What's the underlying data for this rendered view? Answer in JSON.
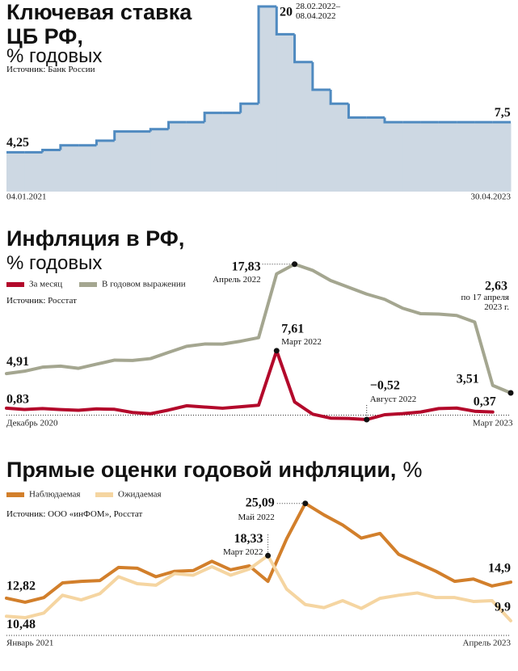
{
  "chart_data": [
    {
      "type": "step",
      "title": "Ключевая ставка ЦБ РФ,",
      "subtitle": "% годовых",
      "source": "Источник: Банк России",
      "categories": [
        "04.01.2021",
        null,
        null,
        null,
        null,
        null,
        null,
        null,
        null,
        null,
        null,
        null,
        null,
        null,
        null,
        null,
        null,
        null,
        null,
        null,
        null,
        null,
        null,
        null,
        null,
        null,
        null,
        "30.04.2023"
      ],
      "series": [
        {
          "color": "#4f8ac0",
          "fill": "#cdd8e3",
          "values": [
            4.25,
            4.25,
            4.5,
            5,
            5,
            5.5,
            6.5,
            6.5,
            6.75,
            7.5,
            7.5,
            8.5,
            8.5,
            9.5,
            20,
            17,
            14,
            11,
            9.5,
            8,
            8,
            7.5,
            7.5,
            7.5,
            7.5,
            7.5,
            7.5,
            7.5
          ],
          "value_labels": [
            "4,25",
            null,
            null,
            null,
            null,
            null,
            null,
            null,
            null,
            null,
            null,
            null,
            null,
            null,
            "20",
            null,
            null,
            null,
            null,
            null,
            null,
            null,
            null,
            null,
            null,
            null,
            null,
            "7,5"
          ],
          "value_notes": [
            null,
            null,
            null,
            null,
            null,
            null,
            null,
            null,
            null,
            null,
            null,
            null,
            null,
            null,
            "28.02.2022–08.04.2022",
            null,
            null,
            null,
            null,
            null,
            null,
            null,
            null,
            null,
            null,
            null,
            null,
            null
          ]
        }
      ],
      "ylim": [
        0,
        20
      ]
    },
    {
      "type": "line",
      "title": "Инфляция в РФ,",
      "subtitle": "% годовых",
      "source": "Источник: Росстат",
      "categories": [
        "Декабрь 2020",
        null,
        null,
        null,
        null,
        null,
        null,
        null,
        null,
        null,
        null,
        null,
        null,
        null,
        null,
        null,
        null,
        null,
        null,
        null,
        null,
        null,
        null,
        null,
        null,
        null,
        null,
        "Март 2023",
        null
      ],
      "series": [
        {
          "name": "За месяц",
          "color": "#b3092b",
          "values": [
            0.83,
            0.67,
            0.78,
            0.66,
            0.58,
            0.74,
            0.69,
            0.31,
            0.17,
            0.6,
            1.11,
            0.96,
            0.82,
            0.99,
            1.17,
            7.61,
            1.56,
            0.12,
            -0.35,
            -0.39,
            -0.52,
            0.05,
            0.18,
            0.37,
            0.78,
            0.84,
            0.46,
            0.37,
            null
          ],
          "value_labels": [
            "0,83",
            null,
            null,
            null,
            null,
            null,
            null,
            null,
            null,
            null,
            null,
            null,
            null,
            null,
            null,
            "7,61",
            null,
            null,
            null,
            null,
            "−0,52",
            null,
            null,
            null,
            null,
            null,
            null,
            "0,37",
            null
          ],
          "value_notes": [
            null,
            null,
            null,
            null,
            null,
            null,
            null,
            null,
            null,
            null,
            null,
            null,
            null,
            null,
            null,
            "Март 2022",
            null,
            null,
            null,
            null,
            "Август 2022",
            null,
            null,
            null,
            null,
            null,
            null,
            null,
            null
          ]
        },
        {
          "name": "В годовом выражении",
          "color": "#a4a690",
          "values": [
            4.91,
            5.19,
            5.67,
            5.79,
            5.53,
            6.02,
            6.5,
            6.46,
            6.68,
            7.41,
            8.13,
            8.4,
            8.39,
            8.73,
            9.15,
            16.69,
            17.83,
            17.1,
            15.9,
            15.1,
            14.3,
            13.68,
            12.63,
            11.98,
            11.94,
            11.77,
            10.99,
            3.51,
            2.63
          ],
          "value_labels": [
            "4,91",
            null,
            null,
            null,
            null,
            null,
            null,
            null,
            null,
            null,
            null,
            null,
            null,
            null,
            null,
            null,
            "17,83",
            null,
            null,
            null,
            null,
            null,
            null,
            null,
            null,
            null,
            null,
            "3,51",
            "2,63"
          ],
          "value_notes": [
            null,
            null,
            null,
            null,
            null,
            null,
            null,
            null,
            null,
            null,
            null,
            null,
            null,
            null,
            null,
            null,
            "Апрель 2022",
            null,
            null,
            null,
            null,
            null,
            null,
            null,
            null,
            null,
            null,
            null,
            "по 17 апреля 2023 г."
          ]
        }
      ],
      "ylim": [
        -1,
        18
      ]
    },
    {
      "type": "line",
      "title": "Прямые оценки годовой инфляции,",
      "subtitle": "%",
      "source": "Источник: ООО «инФОМ», Росстат",
      "categories": [
        "Январь 2021",
        null,
        null,
        null,
        null,
        null,
        null,
        null,
        null,
        null,
        null,
        null,
        null,
        null,
        null,
        null,
        null,
        null,
        null,
        null,
        null,
        null,
        null,
        null,
        null,
        null,
        null,
        "Апрель 2023"
      ],
      "series": [
        {
          "name": "Наблюдаемая",
          "color": "#d27f2b",
          "values": [
            12.82,
            12.3,
            12.9,
            14.8,
            15.0,
            15.1,
            16.8,
            16.7,
            15.6,
            16.3,
            16.4,
            17.6,
            16.5,
            17.0,
            15.0,
            20.5,
            25.09,
            23.6,
            22.3,
            20.6,
            21.2,
            18.5,
            17.4,
            16.3,
            15.0,
            15.3,
            14.4,
            14.9
          ],
          "value_labels": [
            "12,82",
            null,
            null,
            null,
            null,
            null,
            null,
            null,
            null,
            null,
            null,
            null,
            null,
            null,
            null,
            null,
            "25,09",
            null,
            null,
            null,
            null,
            null,
            null,
            null,
            null,
            null,
            null,
            "14,9"
          ],
          "value_notes": [
            null,
            null,
            null,
            null,
            null,
            null,
            null,
            null,
            null,
            null,
            null,
            null,
            null,
            null,
            null,
            null,
            "Май 2022",
            null,
            null,
            null,
            null,
            null,
            null,
            null,
            null,
            null,
            null,
            null
          ]
        },
        {
          "name": "Ожидаемая",
          "color": "#f5d5a1",
          "values": [
            10.48,
            10.3,
            10.9,
            13.2,
            12.6,
            13.4,
            15.6,
            14.7,
            14.5,
            16.0,
            15.8,
            16.9,
            15.8,
            16.6,
            18.33,
            14.0,
            12.0,
            11.6,
            12.5,
            11.5,
            12.8,
            13.2,
            13.5,
            12.9,
            12.9,
            12.4,
            12.5,
            9.9
          ],
          "value_labels": [
            "10,48",
            null,
            null,
            null,
            null,
            null,
            null,
            null,
            null,
            null,
            null,
            null,
            null,
            null,
            "18,33",
            null,
            null,
            null,
            null,
            null,
            null,
            null,
            null,
            null,
            null,
            null,
            null,
            "9,9"
          ],
          "value_notes": [
            null,
            null,
            null,
            null,
            null,
            null,
            null,
            null,
            null,
            null,
            null,
            null,
            null,
            null,
            "Март 2022",
            null,
            null,
            null,
            null,
            null,
            null,
            null,
            null,
            null,
            null,
            null,
            null,
            null
          ]
        }
      ],
      "ylim": [
        8,
        26
      ]
    }
  ]
}
